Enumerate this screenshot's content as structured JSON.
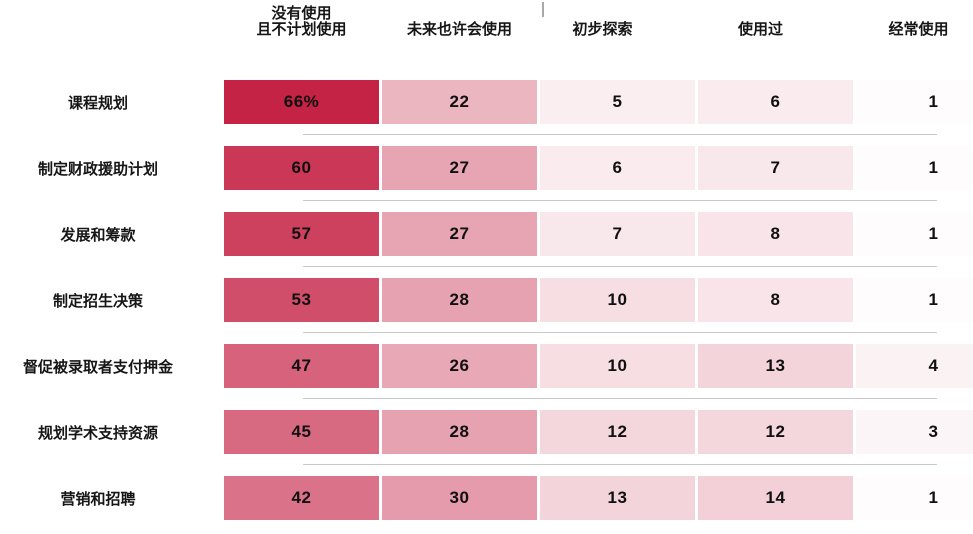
{
  "chart_data": {
    "type": "heatmap",
    "title": "",
    "columns": [
      {
        "name": "col-no-use",
        "lines": [
          "没有使用",
          "且不计划使用"
        ]
      },
      {
        "name": "col-maybe-future",
        "lines": [
          "未来也许会使用"
        ]
      },
      {
        "name": "col-exploring",
        "lines": [
          "初步探索"
        ]
      },
      {
        "name": "col-used",
        "lines": [
          "使用过"
        ]
      },
      {
        "name": "col-frequent",
        "lines": [
          "经常使用"
        ]
      }
    ],
    "rows": [
      {
        "label": "课程规划",
        "values": [
          66,
          22,
          5,
          6,
          1
        ],
        "labels": [
          "66%",
          "22",
          "5",
          "6",
          "1"
        ]
      },
      {
        "label": "制定财政援助计划",
        "values": [
          60,
          27,
          6,
          7,
          1
        ],
        "labels": [
          "60",
          "27",
          "6",
          "7",
          "1"
        ]
      },
      {
        "label": "发展和筹款",
        "values": [
          57,
          27,
          7,
          8,
          1
        ],
        "labels": [
          "57",
          "27",
          "7",
          "8",
          "1"
        ]
      },
      {
        "label": "制定招生决策",
        "values": [
          53,
          28,
          10,
          8,
          1
        ],
        "labels": [
          "53",
          "28",
          "10",
          "8",
          "1"
        ]
      },
      {
        "label": "督促被录取者支付押金",
        "values": [
          47,
          26,
          10,
          13,
          4
        ],
        "labels": [
          "47",
          "26",
          "10",
          "13",
          "4"
        ]
      },
      {
        "label": "规划学术支持资源",
        "values": [
          45,
          28,
          12,
          12,
          3
        ],
        "labels": [
          "45",
          "28",
          "12",
          "12",
          "3"
        ]
      },
      {
        "label": "营销和招聘",
        "values": [
          42,
          30,
          13,
          14,
          1
        ],
        "labels": [
          "42",
          "30",
          "13",
          "14",
          "1"
        ]
      }
    ],
    "color_scale": {
      "min_color": "#FFFFFF",
      "max_color": "#C52346",
      "domain": [
        0,
        66
      ]
    },
    "separator_color": "#C9C9C9",
    "cell_text_color": "#101010",
    "header_tick_visible": true,
    "legend_position": "none",
    "grid": "row-separators-only"
  }
}
